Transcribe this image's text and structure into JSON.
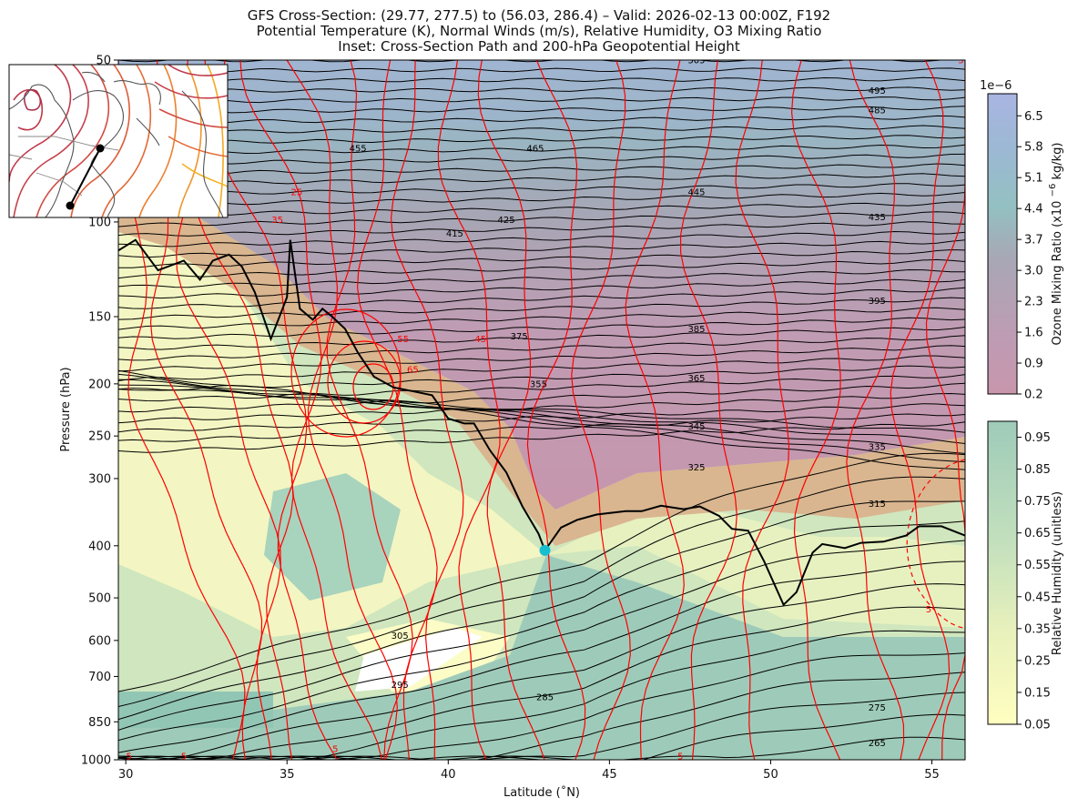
{
  "titles": {
    "line1": "GFS Cross-Section: (29.77, 277.5) to (56.03, 286.4) – Valid: 2026-02-13 00:00Z, F192",
    "line2": "Potential Temperature (K), Normal Winds (m/s), Relative Humidity, O3 Mixing Ratio",
    "line3": "Inset: Cross-Section Path and 200-hPa Geopotential Height"
  },
  "axes": {
    "xlabel": "Latitude (˚N)",
    "ylabel": "Pressure (hPa)",
    "xticks": [
      "30",
      "35",
      "40",
      "45",
      "50",
      "55"
    ],
    "yticks": [
      "50",
      "100",
      "150",
      "200",
      "250",
      "300",
      "400",
      "500",
      "600",
      "700",
      "850",
      "1000"
    ]
  },
  "colorbar_ozone": {
    "label": "Ozone Mixing Ratio (x10 $^{-6}$ kg/kg)",
    "exponent": "1e−6",
    "ticks": [
      "0.2",
      "0.9",
      "1.6",
      "2.3",
      "3.0",
      "3.7",
      "4.4",
      "5.1",
      "5.8",
      "6.5"
    ]
  },
  "colorbar_rh": {
    "label": "Relative Humidity (unitless)",
    "ticks": [
      "0.05",
      "0.15",
      "0.25",
      "0.35",
      "0.45",
      "0.55",
      "0.65",
      "0.75",
      "0.85",
      "0.95"
    ]
  },
  "colors": {
    "theta": "#000000",
    "wind": "#ff0000",
    "tropopause": "#000000",
    "marker": "#17becf",
    "ozone_low": "#c896ac",
    "ozone_high": "#a9b5e2",
    "rh_low": "#fffec1",
    "rh_high": "#9ecbb9"
  },
  "chart_data": {
    "type": "cross-section",
    "x_range": [
      29.77,
      56.03
    ],
    "pressure_range": [
      1000,
      50
    ],
    "y_scale": "log",
    "theta_labels": [
      {
        "value": "505",
        "lat": 47.7,
        "p": 50
      },
      {
        "value": "495",
        "lat": 53.3,
        "p": 57
      },
      {
        "value": "485",
        "lat": 53.3,
        "p": 62
      },
      {
        "value": "465",
        "lat": 42.7,
        "p": 73
      },
      {
        "value": "455",
        "lat": 37.2,
        "p": 73
      },
      {
        "value": "445",
        "lat": 47.7,
        "p": 88
      },
      {
        "value": "435",
        "lat": 53.3,
        "p": 98
      },
      {
        "value": "425",
        "lat": 41.8,
        "p": 99
      },
      {
        "value": "415",
        "lat": 40.2,
        "p": 105
      },
      {
        "value": "395",
        "lat": 53.3,
        "p": 140
      },
      {
        "value": "385",
        "lat": 47.7,
        "p": 158
      },
      {
        "value": "375",
        "lat": 42.2,
        "p": 163
      },
      {
        "value": "365",
        "lat": 47.7,
        "p": 195
      },
      {
        "value": "355",
        "lat": 42.8,
        "p": 200
      },
      {
        "value": "345",
        "lat": 47.7,
        "p": 240
      },
      {
        "value": "335",
        "lat": 53.3,
        "p": 262
      },
      {
        "value": "325",
        "lat": 47.7,
        "p": 286
      },
      {
        "value": "315",
        "lat": 53.3,
        "p": 334
      },
      {
        "value": "305",
        "lat": 38.5,
        "p": 588
      },
      {
        "value": "295",
        "lat": 38.5,
        "p": 725
      },
      {
        "value": "285",
        "lat": 43.0,
        "p": 765
      },
      {
        "value": "275",
        "lat": 53.3,
        "p": 800
      },
      {
        "value": "265",
        "lat": 53.3,
        "p": 930
      }
    ],
    "wind_labels": [
      {
        "value": "25",
        "lat": 35.3,
        "p": 88
      },
      {
        "value": "35",
        "lat": 34.7,
        "p": 99
      },
      {
        "value": "55",
        "lat": 38.6,
        "p": 165
      },
      {
        "value": "65",
        "lat": 38.9,
        "p": 188
      },
      {
        "value": "45",
        "lat": 41.0,
        "p": 165
      },
      {
        "value": "5",
        "lat": 31.8,
        "p": 985
      },
      {
        "value": "5",
        "lat": 30.1,
        "p": 985
      },
      {
        "value": "5",
        "lat": 36.5,
        "p": 955
      },
      {
        "value": "5",
        "lat": 47.2,
        "p": 985
      },
      {
        "value": "5",
        "lat": 55.9,
        "p": 50
      },
      {
        "value": "5",
        "lat": 54.9,
        "p": 525
      }
    ],
    "tropopause": [
      [
        29.77,
        113
      ],
      [
        30.3,
        108
      ],
      [
        31.0,
        123
      ],
      [
        31.8,
        118
      ],
      [
        32.3,
        128
      ],
      [
        32.7,
        118
      ],
      [
        33.2,
        115
      ],
      [
        33.6,
        121
      ],
      [
        34.0,
        135
      ],
      [
        34.5,
        165
      ],
      [
        35.0,
        138
      ],
      [
        35.1,
        108
      ],
      [
        35.4,
        145
      ],
      [
        35.8,
        152
      ],
      [
        36.1,
        145
      ],
      [
        36.4,
        150
      ],
      [
        36.8,
        158
      ],
      [
        37.2,
        175
      ],
      [
        37.7,
        194
      ],
      [
        38.3,
        203
      ],
      [
        39.0,
        207
      ],
      [
        39.5,
        210
      ],
      [
        40.0,
        232
      ],
      [
        40.5,
        237
      ],
      [
        40.8,
        237
      ],
      [
        41.3,
        266
      ],
      [
        41.8,
        292
      ],
      [
        42.3,
        338
      ],
      [
        42.8,
        380
      ],
      [
        43.0,
        408
      ],
      [
        43.5,
        370
      ],
      [
        44.0,
        358
      ],
      [
        44.6,
        350
      ],
      [
        45.5,
        345
      ],
      [
        46.0,
        345
      ],
      [
        46.6,
        337
      ],
      [
        47.3,
        342
      ],
      [
        47.8,
        338
      ],
      [
        48.4,
        352
      ],
      [
        48.8,
        372
      ],
      [
        49.3,
        375
      ],
      [
        49.8,
        428
      ],
      [
        50.4,
        515
      ],
      [
        50.8,
        488
      ],
      [
        51.3,
        412
      ],
      [
        51.6,
        397
      ],
      [
        52.3,
        404
      ],
      [
        52.8,
        395
      ],
      [
        53.5,
        393
      ],
      [
        54.2,
        383
      ],
      [
        54.6,
        368
      ],
      [
        55.3,
        368
      ],
      [
        56.03,
        383
      ]
    ],
    "marker": {
      "lat": 43.0,
      "p": 408
    },
    "inset": {
      "title": "Cross-Section Path and 200-hPa Geopotential Height",
      "path": [
        [
          29.77,
          277.5
        ],
        [
          56.03,
          286.4
        ]
      ]
    }
  }
}
